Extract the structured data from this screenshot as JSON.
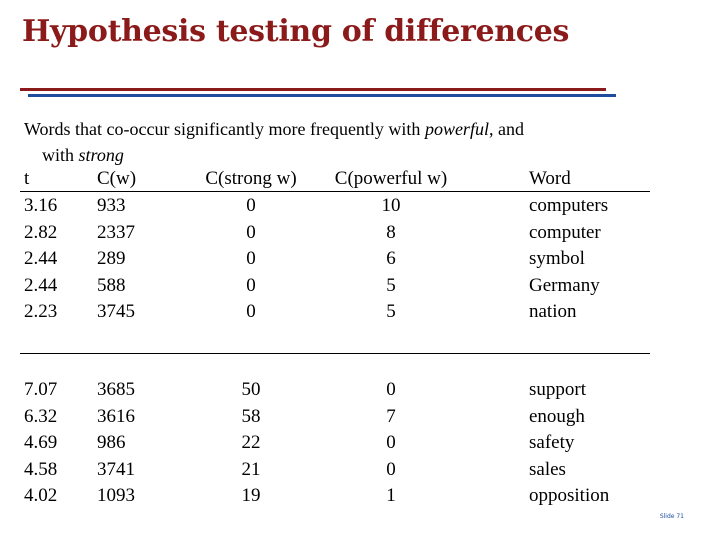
{
  "slide": {
    "title": "Hypothesis testing of differences",
    "intro_line1_a": "Words that co-occur significantly more frequently with ",
    "intro_em1": "powerful",
    "intro_line1_b": ", and",
    "intro_line2_a": "with ",
    "intro_em2": "strong",
    "slide_number": "Slide 71"
  },
  "table": {
    "headers": [
      "t",
      "C(w)",
      "C(strong w)",
      "C(powerful w)",
      "Word"
    ],
    "group1": [
      [
        "3.16",
        "933",
        "0",
        "10",
        "computers"
      ],
      [
        "2.82",
        "2337",
        "0",
        "8",
        "computer"
      ],
      [
        "2.44",
        "289",
        "0",
        "6",
        "symbol"
      ],
      [
        "2.44",
        "588",
        "0",
        "5",
        "Germany"
      ],
      [
        "2.23",
        "3745",
        "0",
        "5",
        "nation"
      ]
    ],
    "group2": [
      [
        "7.07",
        "3685",
        "50",
        "0",
        "support"
      ],
      [
        "6.32",
        "3616",
        "58",
        "7",
        "enough"
      ],
      [
        "4.69",
        "986",
        "22",
        "0",
        "safety"
      ],
      [
        "4.58",
        "3741",
        "21",
        "0",
        "sales"
      ],
      [
        "4.02",
        "1093",
        "19",
        "1",
        "opposition"
      ]
    ]
  }
}
